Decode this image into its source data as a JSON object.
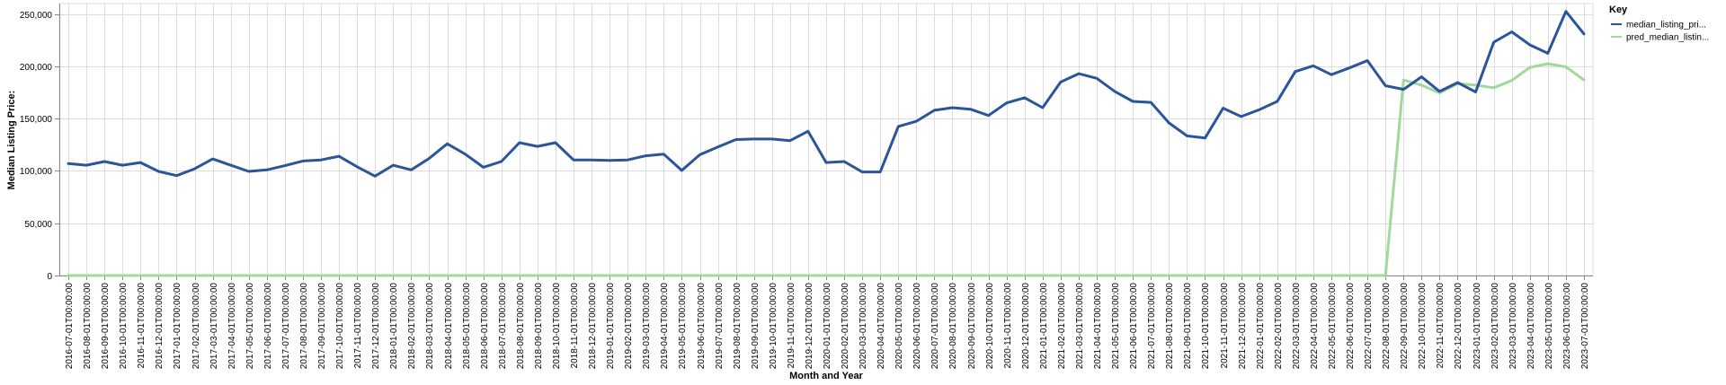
{
  "chart_data": {
    "type": "line",
    "xlabel": "Month and Year",
    "ylabel": "Median Listing Price:",
    "ylim": [
      0,
      260000
    ],
    "y_ticks": [
      0,
      50000,
      100000,
      150000,
      200000,
      250000
    ],
    "y_tick_labels": [
      "0",
      "50,000",
      "100,000",
      "150,000",
      "200,000",
      "250,000"
    ],
    "grid": true,
    "legend_title": "Key",
    "legend_placement": "right",
    "x": [
      "2016-07-01T00:00:00",
      "2016-08-01T00:00:00",
      "2016-09-01T00:00:00",
      "2016-10-01T00:00:00",
      "2016-11-01T00:00:00",
      "2016-12-01T00:00:00",
      "2017-01-01T00:00:00",
      "2017-02-01T00:00:00",
      "2017-03-01T00:00:00",
      "2017-04-01T00:00:00",
      "2017-05-01T00:00:00",
      "2017-06-01T00:00:00",
      "2017-07-01T00:00:00",
      "2017-08-01T00:00:00",
      "2017-09-01T00:00:00",
      "2017-10-01T00:00:00",
      "2017-11-01T00:00:00",
      "2017-12-01T00:00:00",
      "2018-01-01T00:00:00",
      "2018-02-01T00:00:00",
      "2018-03-01T00:00:00",
      "2018-04-01T00:00:00",
      "2018-05-01T00:00:00",
      "2018-06-01T00:00:00",
      "2018-07-01T00:00:00",
      "2018-08-01T00:00:00",
      "2018-09-01T00:00:00",
      "2018-10-01T00:00:00",
      "2018-11-01T00:00:00",
      "2018-12-01T00:00:00",
      "2019-01-01T00:00:00",
      "2019-02-01T00:00:00",
      "2019-03-01T00:00:00",
      "2019-04-01T00:00:00",
      "2019-05-01T00:00:00",
      "2019-06-01T00:00:00",
      "2019-07-01T00:00:00",
      "2019-08-01T00:00:00",
      "2019-09-01T00:00:00",
      "2019-10-01T00:00:00",
      "2019-11-01T00:00:00",
      "2019-12-01T00:00:00",
      "2020-01-01T00:00:00",
      "2020-02-01T00:00:00",
      "2020-03-01T00:00:00",
      "2020-04-01T00:00:00",
      "2020-05-01T00:00:00",
      "2020-06-01T00:00:00",
      "2020-07-01T00:00:00",
      "2020-08-01T00:00:00",
      "2020-09-01T00:00:00",
      "2020-10-01T00:00:00",
      "2020-11-01T00:00:00",
      "2020-12-01T00:00:00",
      "2021-01-01T00:00:00",
      "2021-02-01T00:00:00",
      "2021-03-01T00:00:00",
      "2021-04-01T00:00:00",
      "2021-05-01T00:00:00",
      "2021-06-01T00:00:00",
      "2021-07-01T00:00:00",
      "2021-08-01T00:00:00",
      "2021-09-01T00:00:00",
      "2021-10-01T00:00:00",
      "2021-11-01T00:00:00",
      "2021-12-01T00:00:00",
      "2022-01-01T00:00:00",
      "2022-02-01T00:00:00",
      "2022-03-01T00:00:00",
      "2022-04-01T00:00:00",
      "2022-05-01T00:00:00",
      "2022-06-01T00:00:00",
      "2022-07-01T00:00:00",
      "2022-08-01T00:00:00",
      "2022-09-01T00:00:00",
      "2022-10-01T00:00:00",
      "2022-11-01T00:00:00",
      "2022-12-01T00:00:00",
      "2023-01-01T00:00:00",
      "2023-02-01T00:00:00",
      "2023-03-01T00:00:00",
      "2023-04-01T00:00:00",
      "2023-05-01T00:00:00",
      "2023-06-01T00:00:00",
      "2023-07-01T00:00:00"
    ],
    "series": [
      {
        "name": "median_listing_pri...",
        "color": "#2a5599",
        "values": [
          107000,
          105500,
          109000,
          105500,
          108000,
          99500,
          95500,
          102000,
          111500,
          105500,
          99500,
          101000,
          105000,
          109500,
          110500,
          114000,
          104000,
          95000,
          105500,
          101000,
          112000,
          126000,
          116000,
          103500,
          109000,
          127000,
          123500,
          127000,
          110500,
          110500,
          110000,
          110500,
          114500,
          116000,
          100500,
          115500,
          123000,
          130000,
          130500,
          130500,
          129000,
          138000,
          108000,
          109000,
          99000,
          99000,
          142500,
          147500,
          158000,
          160500,
          159000,
          153000,
          165000,
          170000,
          160500,
          185000,
          193000,
          188500,
          176000,
          166500,
          165500,
          146000,
          133500,
          131500,
          160000,
          152000,
          158500,
          166500,
          195000,
          200500,
          192000,
          198500,
          205500,
          181500,
          178000,
          190000,
          176000,
          184500,
          175500,
          223000,
          233000,
          220500,
          212500,
          252500,
          231000
        ]
      },
      {
        "name": "pred_median_listin...",
        "color": "#a1d99b",
        "values": [
          0,
          0,
          0,
          0,
          0,
          0,
          0,
          0,
          0,
          0,
          0,
          0,
          0,
          0,
          0,
          0,
          0,
          0,
          0,
          0,
          0,
          0,
          0,
          0,
          0,
          0,
          0,
          0,
          0,
          0,
          0,
          0,
          0,
          0,
          0,
          0,
          0,
          0,
          0,
          0,
          0,
          0,
          0,
          0,
          0,
          0,
          0,
          0,
          0,
          0,
          0,
          0,
          0,
          0,
          0,
          0,
          0,
          0,
          0,
          0,
          0,
          0,
          0,
          0,
          0,
          0,
          0,
          0,
          0,
          0,
          0,
          0,
          0,
          0,
          187000,
          182000,
          174500,
          183500,
          182000,
          179500,
          186500,
          199000,
          202500,
          199500,
          187000
        ]
      }
    ]
  }
}
